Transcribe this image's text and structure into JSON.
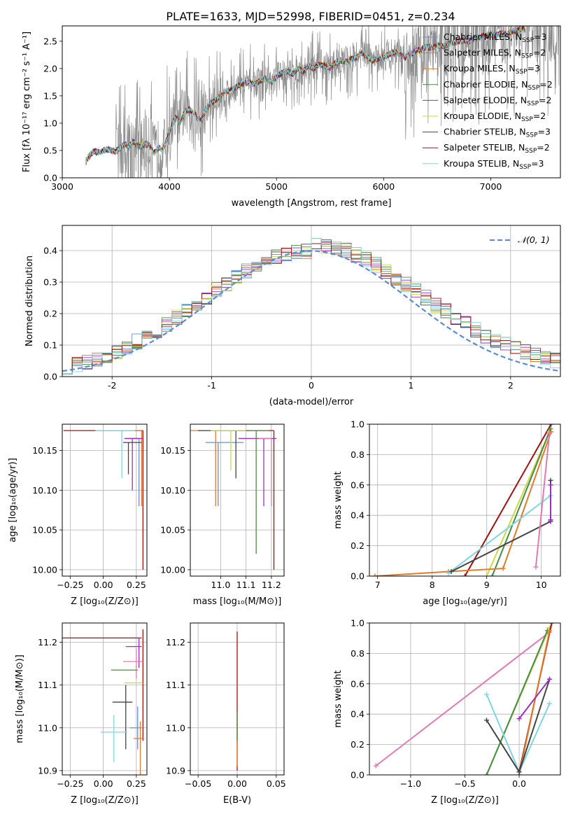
{
  "figure_title": "PLATE=1633, MJD=52998, FIBERID=0451, z=0.234",
  "model_colors": {
    "Chabrier MILES": "#6a8fd8",
    "Salpeter MILES": "#8b8b8b",
    "Kroupa MILES": "#e07b2a",
    "Chabrier ELODIE": "#4a8a4a",
    "Salpeter ELODIE": "#9a2fbf",
    "Kroupa ELODIE": "#c9d948",
    "Chabrier STELIB": "#444444",
    "Salpeter STELIB": "#a01010",
    "Kroupa STELIB": "#7fd6de",
    "extra_pink": "#e07bb0"
  },
  "chart_data": [
    {
      "id": "spectrum",
      "type": "line",
      "title": "PLATE=1633, MJD=52998, FIBERID=0451, z=0.234",
      "xlabel": "wavelength [Angstrom, rest frame]",
      "ylabel": "Flux [fλ 10⁻¹⁷ erg cm⁻² s⁻¹ A⁻¹]",
      "xlim": [
        3000,
        7650
      ],
      "ylim": [
        0,
        2.78
      ],
      "xticks": [
        3000,
        4000,
        5000,
        6000,
        7000
      ],
      "yticks": [
        0.0,
        0.5,
        1.0,
        1.5,
        2.0,
        2.5
      ],
      "legend_position": "top-right",
      "legend": [
        {
          "label": "Chabrier MILES, N",
          "sub": "SSP",
          "suffix": "=3",
          "color": "#6a8fd8"
        },
        {
          "label": "Salpeter MILES, N",
          "sub": "SSP",
          "suffix": "=2",
          "color": "#8b8b8b"
        },
        {
          "label": "Kroupa MILES, N",
          "sub": "SSP",
          "suffix": "=3",
          "color": "#e07b2a"
        },
        {
          "label": "Chabrier ELODIE, N",
          "sub": "SSP",
          "suffix": "=2",
          "color": "#4a8a4a"
        },
        {
          "label": "Salpeter ELODIE, N",
          "sub": "SSP",
          "suffix": "=2",
          "color": "#9a2fbf"
        },
        {
          "label": "Kroupa ELODIE, N",
          "sub": "SSP",
          "suffix": "=2",
          "color": "#c9d948"
        },
        {
          "label": "Chabrier STELIB, N",
          "sub": "SSP",
          "suffix": "=3",
          "color": "#444444"
        },
        {
          "label": "Salpeter STELIB, N",
          "sub": "SSP",
          "suffix": "=2",
          "color": "#a01010"
        },
        {
          "label": "Kroupa STELIB, N",
          "sub": "SSP",
          "suffix": "=3",
          "color": "#7fd6de"
        }
      ],
      "model_curve": {
        "x": [
          3220,
          3260,
          3300,
          3340,
          3380,
          3420,
          3460,
          3500,
          3540,
          3580,
          3620,
          3660,
          3700,
          3740,
          3780,
          3820,
          3860,
          3900,
          3940,
          3980,
          4020,
          4060,
          4100,
          4140,
          4180,
          4220,
          4260,
          4300,
          4340,
          4380,
          4420,
          4460,
          4500,
          4550,
          4600,
          4650,
          4700,
          4750,
          4800,
          4850,
          4900,
          4950,
          5000,
          5050,
          5100,
          5150,
          5200,
          5250,
          5300,
          5350,
          5400,
          5450,
          5500,
          5550,
          5600,
          5650,
          5700,
          5750,
          5800,
          5850,
          5900,
          5950,
          6000,
          6050,
          6100,
          6150,
          6200,
          6250,
          6300,
          6350,
          6400,
          6450,
          6500,
          6550,
          6600,
          6650,
          6700,
          6750,
          6800,
          6850,
          6900,
          6950,
          7000,
          7050,
          7100,
          7150,
          7200,
          7250,
          7300
        ],
        "y": [
          0.3,
          0.42,
          0.48,
          0.47,
          0.5,
          0.52,
          0.5,
          0.48,
          0.55,
          0.62,
          0.58,
          0.66,
          0.6,
          0.58,
          0.62,
          0.58,
          0.45,
          0.55,
          0.5,
          0.72,
          0.95,
          1.1,
          1.0,
          1.2,
          1.25,
          1.22,
          1.1,
          1.05,
          1.25,
          1.35,
          1.4,
          1.48,
          1.55,
          1.6,
          1.62,
          1.7,
          1.72,
          1.75,
          1.72,
          1.78,
          1.82,
          1.75,
          1.85,
          1.92,
          1.95,
          1.9,
          2.0,
          1.95,
          2.05,
          2.0,
          2.08,
          2.05,
          2.02,
          2.1,
          2.15,
          2.12,
          2.18,
          2.2,
          2.3,
          2.2,
          2.15,
          2.18,
          2.22,
          2.25,
          2.3,
          2.28,
          2.2,
          2.25,
          2.32,
          2.35,
          2.4,
          2.38,
          2.42,
          2.4,
          2.45,
          2.48,
          2.5,
          2.52,
          2.5,
          2.55,
          2.58,
          2.6,
          2.62,
          2.6,
          2.65,
          2.62,
          2.68,
          2.7,
          2.72
        ]
      }
    },
    {
      "id": "residuals",
      "type": "line",
      "xlabel": "(data-model)/error",
      "ylabel": "Normed distribution",
      "xlim": [
        -2.5,
        2.5
      ],
      "ylim": [
        0,
        0.48
      ],
      "xticks": [
        -2,
        -1,
        0,
        1,
        2
      ],
      "yticks": [
        0.0,
        0.1,
        0.2,
        0.3,
        0.4
      ],
      "legend_position": "top-right",
      "legend": [
        {
          "label": "𝒩(0, 1)",
          "color": "#5b8bd0",
          "style": "dashed"
        }
      ],
      "reference_curve": "normal(0,1)"
    },
    {
      "id": "age_vs_Z",
      "type": "scatter",
      "xlabel": "Z [log₁₀(Z/Z⊙)]",
      "ylabel": "age  [log₁₀(age/yr)]",
      "xlim": [
        -0.31,
        0.33
      ],
      "ylim": [
        9.992,
        10.183
      ],
      "xticks": [
        -0.25,
        0.0,
        0.25
      ],
      "xticklabels": [
        "−0.25",
        "0.00",
        "0.25"
      ],
      "yticks": [
        10.0,
        10.05,
        10.1,
        10.15
      ],
      "yticklabels": [
        "10.00",
        "10.05",
        "10.10",
        "10.15"
      ],
      "points": [
        {
          "x": 0.3,
          "y": 10.175,
          "xerr": [
            0.6,
            0.0
          ],
          "yerr": [
            0.175,
            0.0
          ],
          "color": "#a01010"
        },
        {
          "x": 0.29,
          "y": 10.175,
          "xerr": [
            0.05,
            0.0
          ],
          "yerr": [
            0.095,
            0.0
          ],
          "color": "#e07b2a"
        },
        {
          "x": 0.27,
          "y": 10.165,
          "xerr": [
            0.1,
            0.0
          ],
          "yerr": [
            0.085,
            0.0
          ],
          "color": "#6a8fd8"
        },
        {
          "x": 0.22,
          "y": 10.165,
          "xerr": [
            0.06,
            0.08
          ],
          "yerr": [
            0.065,
            0.0
          ],
          "color": "#9a2fbf"
        },
        {
          "x": 0.19,
          "y": 10.16,
          "xerr": [
            0.04,
            0.1
          ],
          "yerr": [
            0.04,
            0.0
          ],
          "color": "#444444"
        },
        {
          "x": 0.14,
          "y": 10.175,
          "xerr": [
            0.2,
            0.1
          ],
          "yerr": [
            0.06,
            0.0
          ],
          "color": "#7fd6de"
        }
      ]
    },
    {
      "id": "age_vs_mass",
      "type": "scatter",
      "xlabel": "mass [log₁₀(M/M⊙)]",
      "xlim": [
        10.88,
        11.25
      ],
      "ylim": [
        9.992,
        10.183
      ],
      "xticks": [
        11.0,
        11.1,
        11.2
      ],
      "xticklabels": [
        "11.0",
        "11.1",
        "11.2"
      ],
      "yticks": [
        10.0,
        10.05,
        10.1,
        10.15
      ],
      "yticklabels": [
        "10.00",
        "10.05",
        "10.10",
        "10.15"
      ],
      "points": [
        {
          "x": 11.21,
          "y": 10.175,
          "xerr": [
            0.15,
            0.0
          ],
          "yerr": [
            0.175,
            0.0
          ],
          "color": "#a01010"
        },
        {
          "x": 10.98,
          "y": 10.175,
          "xerr": [
            0.1,
            0.2
          ],
          "yerr": [
            0.095,
            0.0
          ],
          "color": "#e07b2a"
        },
        {
          "x": 10.99,
          "y": 10.16,
          "xerr": [
            0.05,
            0.1
          ],
          "yerr": [
            0.08,
            0.0
          ],
          "color": "#6a8fd8"
        },
        {
          "x": 11.17,
          "y": 10.165,
          "xerr": [
            0.1,
            0.05
          ],
          "yerr": [
            0.085,
            0.0
          ],
          "color": "#9a2fbf"
        },
        {
          "x": 11.06,
          "y": 10.175,
          "xerr": [
            0.15,
            0.05
          ],
          "yerr": [
            0.06,
            0.0
          ],
          "color": "#444444"
        },
        {
          "x": 11.14,
          "y": 10.175,
          "xerr": [
            0.1,
            0.05
          ],
          "yerr": [
            0.155,
            0.0
          ],
          "color": "#4a8a4a"
        },
        {
          "x": 11.04,
          "y": 10.175,
          "xerr": [
            0.08,
            0.06
          ],
          "yerr": [
            0.05,
            0.0
          ],
          "color": "#c9d948"
        },
        {
          "x": 11.2,
          "y": 10.165,
          "xerr": [
            0.05,
            0.0
          ],
          "yerr": [
            0.085,
            0.0
          ],
          "color": "#e07bb0"
        }
      ]
    },
    {
      "id": "weight_vs_age",
      "type": "line",
      "xlabel": "age  [log₁₀(age/yr)]",
      "ylabel": "mass weight",
      "xlim": [
        6.85,
        10.35
      ],
      "ylim": [
        0,
        1.0
      ],
      "xticks": [
        7,
        8,
        9,
        10
      ],
      "yticks": [
        0.0,
        0.2,
        0.4,
        0.6,
        0.8,
        1.0
      ],
      "yticklabels": [
        "0.0",
        "0.2",
        "0.4",
        "0.6",
        "0.8",
        "1.0"
      ],
      "series": [
        {
          "x": [
            8.6,
            10.18
          ],
          "y": [
            0.0,
            1.0
          ],
          "color": "#a01010"
        },
        {
          "x": [
            9.0,
            10.15
          ],
          "y": [
            0.0,
            0.95
          ],
          "color": "#c9d948"
        },
        {
          "x": [
            9.1,
            10.17
          ],
          "y": [
            0.0,
            0.97
          ],
          "color": "#4a8a4a"
        },
        {
          "x": [
            6.95,
            8.3,
            9.3,
            10.18
          ],
          "y": [
            0.0,
            0.03,
            0.05,
            0.95
          ],
          "color": "#e07b2a"
        },
        {
          "x": [
            8.3,
            10.17
          ],
          "y": [
            0.02,
            0.53
          ],
          "color": "#7fd6de"
        },
        {
          "x": [
            8.35,
            10.17
          ],
          "y": [
            0.03,
            0.36
          ],
          "color": "#444444"
        },
        {
          "x": [
            10.17,
            10.17
          ],
          "y": [
            0.37,
            0.63
          ],
          "color": "#444444"
        },
        {
          "x": [
            9.9,
            10.15
          ],
          "y": [
            0.06,
            0.94
          ],
          "color": "#e07bb0"
        },
        {
          "x": [
            10.17,
            10.17
          ],
          "y": [
            0.36,
            0.6
          ],
          "color": "#9a2fbf"
        }
      ]
    },
    {
      "id": "mass_vs_Z",
      "type": "scatter",
      "xlabel": "Z [log₁₀(Z/Z⊙)]",
      "ylabel": "mass [log₁₀(M/M⊙)]",
      "xlim": [
        -0.31,
        0.33
      ],
      "ylim": [
        10.89,
        11.245
      ],
      "xticks": [
        -0.25,
        0.0,
        0.25
      ],
      "xticklabels": [
        "−0.25",
        "0.00",
        "0.25"
      ],
      "yticks": [
        10.9,
        11.0,
        11.1,
        11.2
      ],
      "yticklabels": [
        "10.9",
        "11.0",
        "11.1",
        "11.2"
      ],
      "points": [
        {
          "x": 0.29,
          "y": 11.21,
          "xerr": [
            0.6,
            0.0
          ],
          "yerr": [
            0.0,
            0.0
          ],
          "color": "#a01010"
        },
        {
          "x": 0.3,
          "y": 11.18,
          "xerr": [
            0.0,
            0.0
          ],
          "yerr": [
            0.21,
            0.05
          ],
          "color": "#a01010"
        },
        {
          "x": 0.27,
          "y": 11.19,
          "xerr": [
            0.1,
            0.02
          ],
          "yerr": [
            0.05,
            0.02
          ],
          "color": "#9a2fbf"
        },
        {
          "x": 0.25,
          "y": 11.155,
          "xerr": [
            0.1,
            0.05
          ],
          "yerr": [
            0.04,
            0.03
          ],
          "color": "#e07bb0"
        },
        {
          "x": 0.16,
          "y": 11.135,
          "xerr": [
            0.1,
            0.1
          ],
          "yerr": [
            0.0,
            0.0
          ],
          "color": "#4a8a4a"
        },
        {
          "x": 0.22,
          "y": 11.105,
          "xerr": [
            0.06,
            0.08
          ],
          "yerr": [
            0.0,
            0.0
          ],
          "color": "#c9d948"
        },
        {
          "x": 0.17,
          "y": 11.06,
          "xerr": [
            0.1,
            0.05
          ],
          "yerr": [
            0.11,
            0.04
          ],
          "color": "#444444"
        },
        {
          "x": 0.26,
          "y": 11.0,
          "xerr": [
            0.06,
            0.03
          ],
          "yerr": [
            0.05,
            0.05
          ],
          "color": "#6a8fd8"
        },
        {
          "x": 0.28,
          "y": 10.975,
          "xerr": [
            0.05,
            0.03
          ],
          "yerr": [
            0.09,
            0.04
          ],
          "color": "#e07b2a"
        },
        {
          "x": 0.08,
          "y": 10.99,
          "xerr": [
            0.1,
            0.1
          ],
          "yerr": [
            0.07,
            0.04
          ],
          "color": "#7fd6de"
        }
      ]
    },
    {
      "id": "mass_vs_EBV",
      "type": "scatter",
      "xlabel": "E(B-V)",
      "xlim": [
        -0.06,
        0.06
      ],
      "ylim": [
        10.89,
        11.245
      ],
      "xticks": [
        -0.05,
        0.0,
        0.05
      ],
      "xticklabels": [
        "−0.05",
        "0.00",
        "0.05"
      ],
      "yticks": [
        10.9,
        11.0,
        11.1,
        11.2
      ],
      "yticklabels": [
        "10.9",
        "11.0",
        "11.1",
        "11.2"
      ],
      "points": [
        {
          "x": 0.0,
          "y": 11.06,
          "yerr": [
            0.16,
            0.165
          ],
          "color": "#a01010"
        },
        {
          "x": 0.0,
          "y": 11.0,
          "yerr": [
            0.09,
            0.03
          ],
          "color": "#e07b2a"
        },
        {
          "x": 0.0,
          "y": 11.0,
          "yerr": [
            0.03,
            0.035
          ],
          "color": "#4a8a4a"
        }
      ]
    },
    {
      "id": "weight_vs_Z",
      "type": "line",
      "xlabel": "Z [log₁₀(Z/Z⊙)]",
      "ylabel": "mass weight",
      "xlim": [
        -1.38,
        0.38
      ],
      "ylim": [
        0,
        1.0
      ],
      "xticks": [
        -1.0,
        -0.5,
        0.0
      ],
      "xticklabels": [
        "−1.0",
        "−0.5",
        "0.0"
      ],
      "yticks": [
        0.0,
        0.2,
        0.4,
        0.6,
        0.8,
        1.0
      ],
      "yticklabels": [
        "0.0",
        "0.2",
        "0.4",
        "0.6",
        "0.8",
        "1.0"
      ],
      "series": [
        {
          "x": [
            -1.32,
            0.28
          ],
          "y": [
            0.06,
            0.94
          ],
          "color": "#e07bb0"
        },
        {
          "x": [
            -0.3,
            0.28
          ],
          "y": [
            0.0,
            0.97
          ],
          "color": "#c9d948"
        },
        {
          "x": [
            -0.3,
            0.26
          ],
          "y": [
            0.0,
            0.95
          ],
          "color": "#4a8a4a"
        },
        {
          "x": [
            0.0,
            0.3
          ],
          "y": [
            0.02,
            1.0
          ],
          "color": "#a01010"
        },
        {
          "x": [
            0.0,
            0.28
          ],
          "y": [
            0.0,
            0.95
          ],
          "color": "#e07b2a"
        },
        {
          "x": [
            -0.3,
            0.0,
            0.28
          ],
          "y": [
            0.53,
            0.02,
            0.47
          ],
          "color": "#7fd6de"
        },
        {
          "x": [
            -0.3,
            0.0,
            0.28
          ],
          "y": [
            0.36,
            0.02,
            0.63
          ],
          "color": "#444444"
        },
        {
          "x": [
            0.0,
            0.28
          ],
          "y": [
            0.37,
            0.63
          ],
          "color": "#9a2fbf"
        }
      ]
    }
  ]
}
